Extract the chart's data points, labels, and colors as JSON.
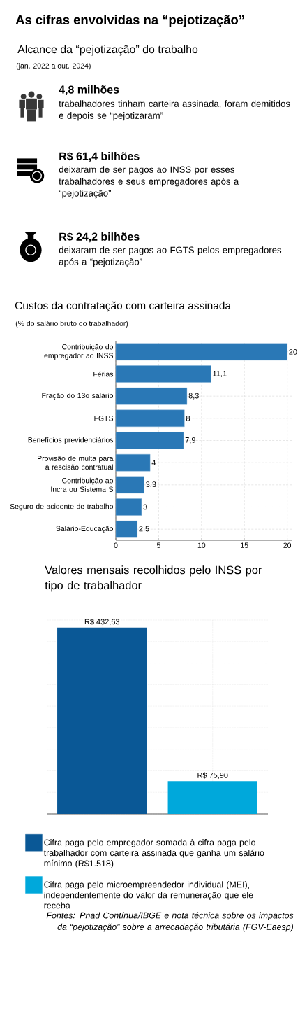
{
  "chart_data": [
    {
      "type": "other",
      "title": "As cifras envolvidas na “pejotização”",
      "subtitle": "Alcance da “pejotização” do trabalho",
      "annotations": [
        "(jan. 2022 a out. 2024)",
        "4,8 milhões",
        "trabalhadores tinham carteira assinada, foram demitidos e depois se “pejotizaram”",
        "R$ 61,4 bilhões",
        "deixaram de ser pagos ao INSS por esses trabalhadores e seus empregadores após a “pejotização”",
        "R$ 24,2 bilhões",
        "deixaram de ser pagos ao FGTS pelos empregadores após a “pejotização”"
      ]
    },
    {
      "type": "bar",
      "orientation": "horizontal",
      "title": "Custos da contratação com carteira assinada",
      "subtitle": "(% do salário bruto do trabalhador)",
      "categories": [
        "Contribuição do empregador ao INSS",
        "Férias",
        "Fração do 13o salário",
        "FGTS",
        "Benefícios previdenciários",
        "Provisão de multa para a rescisão contratual",
        "Contribuição ao Incra ou Sistema S",
        "Seguro de acidente de trabalho",
        "Salário-Educação"
      ],
      "values": [
        20,
        11.1,
        8.3,
        8,
        7.9,
        4,
        3.3,
        3,
        2.5
      ],
      "value_labels": [
        "20",
        "11,1",
        "8,3",
        "8",
        "7,9",
        "4",
        "3,3",
        "3",
        "2,5"
      ],
      "color": "#2a78b6",
      "xlim": [
        0,
        20.6
      ],
      "xticks": [
        0,
        5,
        10,
        15,
        20
      ],
      "grid": true
    },
    {
      "type": "bar",
      "title": "Valores mensais recolhidos pelo INSS por tipo de trabalhador",
      "categories": [
        null,
        null
      ],
      "series": [
        {
          "name": "Cifra paga pelo empregador somada à cifra paga pelo trabalhador com carteira assinada que ganha um salário mínimo (R$1.518)",
          "color": "#0a5896",
          "values": [
            432.63,
            null
          ],
          "value_labels": [
            "R$ 432,63",
            null
          ]
        },
        {
          "name": "Cifra paga pelo microempreendedor individual (MEI), independentemente do valor da remuneração que ele receba",
          "color": "#00a8db",
          "values": [
            null,
            75.9
          ],
          "value_labels": [
            null,
            "R$ 75,90"
          ]
        }
      ],
      "ylim": [
        0,
        450
      ],
      "yticks": [
        {
          "value": 0,
          "label": null
        },
        {
          "value": 50,
          "label": null
        },
        {
          "value": 100,
          "label": null
        },
        {
          "value": 150,
          "label": null
        },
        {
          "value": 200,
          "label": null
        },
        {
          "value": 250,
          "label": null
        },
        {
          "value": 300,
          "label": null
        },
        {
          "value": 350,
          "label": null
        },
        {
          "value": 400,
          "label": null
        },
        {
          "value": 450,
          "label": null
        }
      ],
      "grid": true,
      "legend": "bottom",
      "stacked": true,
      "annotations": [
        "Fontes: Pnad Contínua/IBGE e nota técnica sobre os impactos da “pejotização” sobre a arrecadação tributária (FGV-Eaesp)"
      ]
    }
  ]
}
